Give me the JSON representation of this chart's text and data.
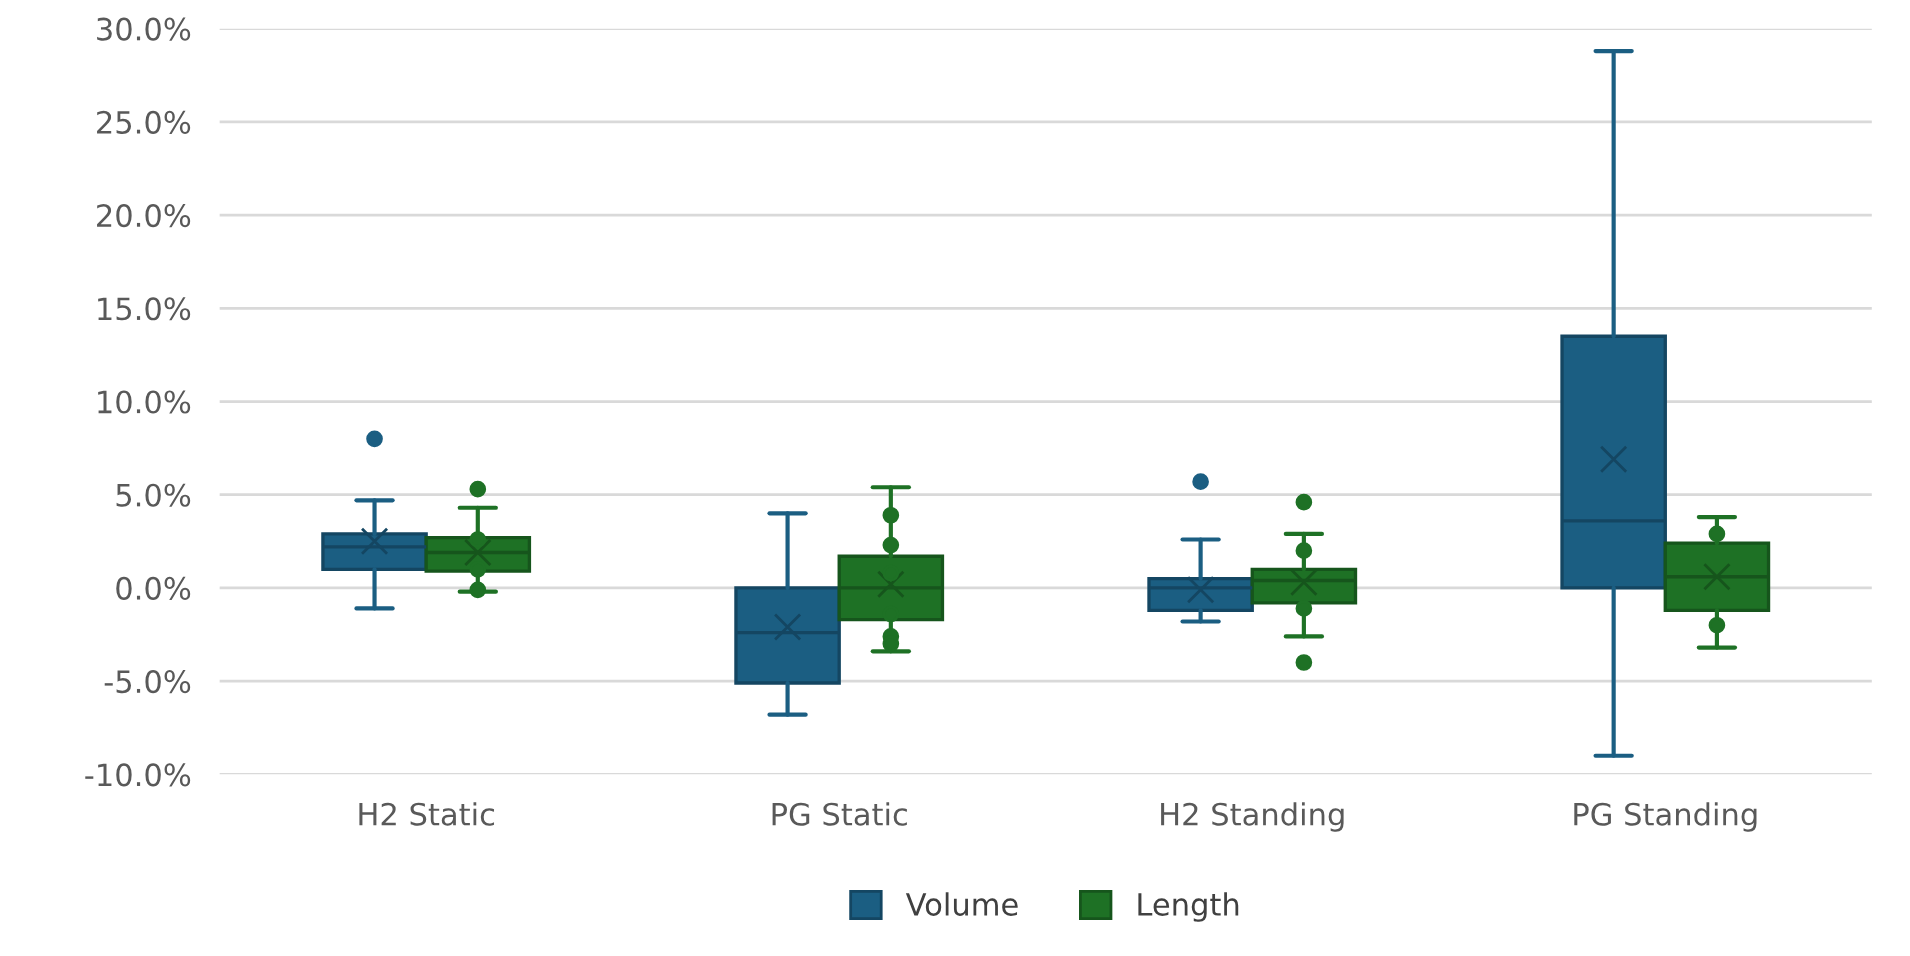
{
  "chart_data": {
    "type": "box",
    "categories": [
      "H2 Static",
      "PG Static",
      "H2 Standing",
      "PG Standing"
    ],
    "ylim": [
      -10,
      30
    ],
    "yticks": [
      {
        "value": -10,
        "label": "-10.0%"
      },
      {
        "value": -5,
        "label": "-5.0%"
      },
      {
        "value": 0,
        "label": "0.0%"
      },
      {
        "value": 5,
        "label": "5.0%"
      },
      {
        "value": 10,
        "label": "10.0%"
      },
      {
        "value": 15,
        "label": "15.0%"
      },
      {
        "value": 20,
        "label": "20.0%"
      },
      {
        "value": 25,
        "label": "25.0%"
      },
      {
        "value": 30,
        "label": "30.0%"
      }
    ],
    "grid": "y",
    "legend": "bottom",
    "series": [
      {
        "name": "Volume",
        "color": "#1b5e82",
        "boxes": [
          {
            "low": -1.1,
            "q1": 1.0,
            "median": 2.2,
            "q3": 2.9,
            "high": 4.7,
            "mean": 2.5,
            "outliers": [
              8.0
            ]
          },
          {
            "low": -6.8,
            "q1": -5.1,
            "median": -2.4,
            "q3": 0.0,
            "high": 4.0,
            "mean": -2.1
          },
          {
            "low": -1.8,
            "q1": -1.2,
            "median": 0.0,
            "q3": 0.5,
            "high": 2.6,
            "mean": -0.1,
            "outliers": [
              5.7
            ]
          },
          {
            "low": -9.0,
            "q1": 0.0,
            "median": 3.6,
            "q3": 13.5,
            "high": 28.8,
            "mean": 6.9
          }
        ]
      },
      {
        "name": "Length",
        "color": "#1e7125",
        "boxes": [
          {
            "low": -0.2,
            "q1": 0.9,
            "median": 1.9,
            "q3": 2.7,
            "high": 4.3,
            "mean": 1.9,
            "outliers": [
              5.3,
              2.6,
              1.0,
              -0.1
            ]
          },
          {
            "low": -3.4,
            "q1": -1.7,
            "median": 0.0,
            "q3": 1.7,
            "high": 5.4,
            "mean": 0.2,
            "outliers": [
              3.9,
              2.3,
              0.8,
              -1.4,
              -2.6,
              -3.0
            ]
          },
          {
            "low": -2.6,
            "q1": -0.8,
            "median": 0.4,
            "q3": 1.0,
            "high": 2.9,
            "mean": 0.3,
            "outliers": [
              4.6,
              2.0,
              -1.1,
              -4.0
            ]
          },
          {
            "low": -3.2,
            "q1": -1.2,
            "median": 0.6,
            "q3": 2.4,
            "high": 3.8,
            "mean": 0.6,
            "outliers": [
              2.9,
              -2.0
            ]
          }
        ]
      }
    ]
  }
}
